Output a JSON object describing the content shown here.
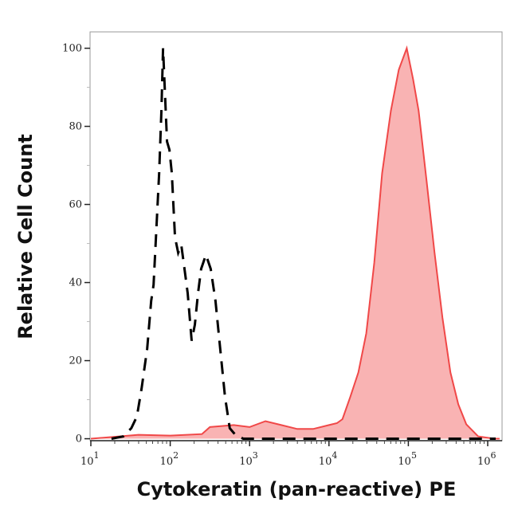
{
  "chart_data": {
    "type": "area",
    "title": "",
    "xlabel": "Cytokeratin (pan-reactive) PE",
    "ylabel": "Relative Cell Count",
    "x_scale": "log",
    "xlim": [
      10,
      1500000
    ],
    "ylim": [
      -0.5,
      105
    ],
    "x_ticks": [
      {
        "base": "10",
        "exp": "1",
        "value": 10
      },
      {
        "base": "10",
        "exp": "2",
        "value": 100
      },
      {
        "base": "10",
        "exp": "3",
        "value": 1000
      },
      {
        "base": "10",
        "exp": "4",
        "value": 10000
      },
      {
        "base": "10",
        "exp": "5",
        "value": 100000
      },
      {
        "base": "10",
        "exp": "6",
        "value": 1000000
      }
    ],
    "y_ticks": [
      "0",
      "20",
      "40",
      "60",
      "80",
      "100"
    ],
    "grid": false,
    "colors": {
      "stained_line": "#f04848",
      "stained_fill": "#f9b3b3",
      "control_line": "#000000",
      "frame": "#999999"
    },
    "series": [
      {
        "style": "dashed black line (unstained/isotype control)",
        "x_log10": [
          1.26,
          1.41,
          1.51,
          1.58,
          1.64,
          1.71,
          1.76,
          1.79,
          1.82,
          1.86,
          1.89,
          1.91,
          1.93,
          1.96,
          1.99,
          2.02,
          2.06,
          2.1,
          2.14,
          2.18,
          2.22,
          2.27,
          2.31,
          2.35,
          2.39,
          2.45,
          2.51,
          2.57,
          2.63,
          2.69,
          2.75,
          2.82,
          2.92,
          6.1
        ],
        "y": [
          0,
          0.6,
          2.7,
          5.7,
          12.9,
          23.1,
          35.3,
          39.4,
          51.6,
          68,
          84.3,
          100,
          90.4,
          76.1,
          74,
          68,
          51.6,
          47.6,
          49.6,
          43.5,
          37.3,
          25.1,
          29.2,
          37.3,
          43.5,
          47.1,
          43.5,
          35.3,
          23.1,
          10.8,
          2.7,
          1,
          0,
          0
        ]
      },
      {
        "style": "red filled histogram (stained)",
        "x_log10": [
          1.0,
          1.3,
          1.6,
          2.0,
          2.4,
          2.5,
          2.8,
          3.0,
          3.2,
          3.4,
          3.6,
          3.8,
          4.0,
          4.1,
          4.17,
          4.27,
          4.37,
          4.47,
          4.57,
          4.67,
          4.78,
          4.88,
          4.98,
          5.06,
          5.13,
          5.23,
          5.33,
          5.43,
          5.53,
          5.63,
          5.73,
          5.88,
          6.08,
          6.15
        ],
        "y": [
          0,
          0.5,
          1,
          0.8,
          1.2,
          3,
          3.5,
          3,
          4.5,
          3.5,
          2.5,
          2.5,
          3.5,
          4,
          5,
          10.8,
          17,
          27,
          45,
          68,
          84,
          94.5,
          100,
          92,
          84,
          66,
          47.6,
          31,
          17,
          8.8,
          3.7,
          0.6,
          0,
          0
        ]
      }
    ]
  }
}
